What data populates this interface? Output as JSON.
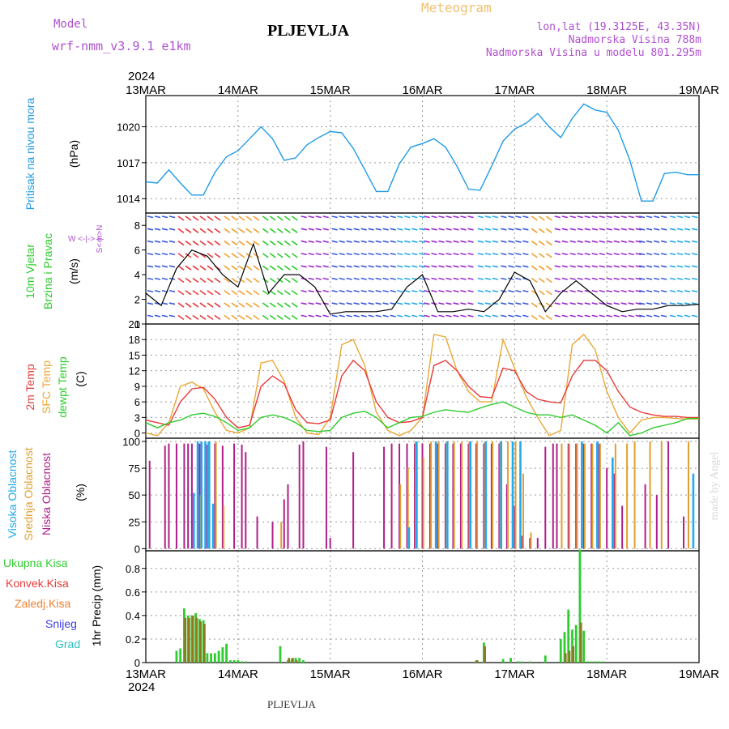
{
  "header": {
    "model_label": "Model",
    "model_name": "wrf-nmm_v3.9.1 e1km",
    "station_title": "PLJEVLJA",
    "product_title": "Meteogram",
    "coords": "lon,lat (19.3125E, 43.35N)",
    "elevation": "Nadmorska Visina 788m",
    "model_elevation": "Nadmorska Visina u modelu 801.295m"
  },
  "footer": {
    "station": "PLJEVLJA",
    "credit": "made by Angel"
  },
  "time_axis": {
    "year": "2024",
    "labels": [
      "13MAR",
      "14MAR",
      "15MAR",
      "16MAR",
      "17MAR",
      "18MAR",
      "19MAR"
    ]
  },
  "panels": {
    "pressure": {
      "label": "Pritisak na nivou mora",
      "unit": "(hPa)",
      "ticks": [
        "1020",
        "1017",
        "1014"
      ]
    },
    "wind": {
      "label_top": "10m Vjetar",
      "label_bottom": "Brzina i Pravac",
      "unit": "(m/s)",
      "ticks": [
        "8",
        "6",
        "4",
        "2",
        "0"
      ],
      "compass": "W <-|-> E",
      "compass_v": "S<-|->N"
    },
    "temp": {
      "label_1": "2m Temp",
      "label_2": "SFC Temp",
      "label_3": "dewpt Temp",
      "unit": "(C)",
      "ticks": [
        "21",
        "18",
        "15",
        "12",
        "9",
        "6",
        "3",
        "0"
      ]
    },
    "cloud": {
      "label_1": "Visoka Oblacnost",
      "label_2": "Srednja Oblacnost",
      "label_3": "Niska Oblacnost",
      "unit": "(%)",
      "ticks": [
        "100",
        "75",
        "50",
        "25",
        "0"
      ]
    },
    "precip": {
      "legend": [
        "Ukupna Kisa",
        "Konvek.Kisa",
        "Zaledj.Kisa",
        "Snijeg",
        "Grad"
      ],
      "unit": "1hr Precip (mm)",
      "ticks": [
        "0.8",
        "0.6",
        "0.4",
        "0.2",
        "0"
      ]
    }
  },
  "colors": {
    "pressure_line": "#1e9be6",
    "temp_2m": "#e83a3a",
    "temp_sfc": "#e8a838",
    "temp_dewpt": "#2ecc2e",
    "cloud_high": "#22aaee",
    "cloud_mid": "#e0a030",
    "cloud_low": "#b0208a",
    "rain_total": "#2ecc2e",
    "rain_conv": "#e83a3a",
    "rain_frz": "#f08030",
    "snow": "#4040e0",
    "hail": "#30c0c0",
    "model_text": "#b050d0",
    "meteogram_text": "#f0c070"
  },
  "chart_data": [
    {
      "type": "line",
      "panel": "pressure",
      "ylabel": "Pritisak na nivou mora (hPa)",
      "xlim": [
        0,
        144
      ],
      "ylim": [
        1012.8,
        1022.6
      ],
      "series": [
        {
          "x": [
            0,
            3,
            6,
            9,
            12,
            15,
            18,
            21,
            24,
            27,
            30,
            33,
            36,
            39,
            42,
            45,
            48,
            51,
            54,
            57,
            60,
            63,
            66,
            69,
            72,
            75,
            78,
            81,
            84,
            87,
            90,
            93,
            96,
            99,
            102,
            105,
            108,
            111,
            114,
            117,
            120,
            123,
            126,
            129,
            132,
            135,
            138,
            141,
            144
          ],
          "values": [
            1015.4,
            1015.3,
            1016.4,
            1015.3,
            1014.3,
            1014.3,
            1016.2,
            1017.5,
            1018.0,
            1019.0,
            1020.0,
            1019.0,
            1017.2,
            1017.4,
            1018.5,
            1019.1,
            1019.6,
            1019.5,
            1018.2,
            1016.4,
            1014.6,
            1014.6,
            1016.9,
            1018.3,
            1018.6,
            1019.0,
            1018.3,
            1016.7,
            1014.8,
            1014.7,
            1016.7,
            1018.8,
            1019.8,
            1020.3,
            1021.1,
            1020.0,
            1019.1,
            1020.7,
            1021.9,
            1021.4,
            1021.2,
            1019.7,
            1017.2,
            1013.8,
            1013.8,
            1016.1,
            1016.2,
            1016.0,
            1016.0
          ]
        }
      ]
    },
    {
      "type": "line",
      "panel": "wind",
      "ylabel": "(m/s)",
      "xlim": [
        0,
        144
      ],
      "ylim": [
        0,
        9
      ],
      "series": [
        {
          "name": "speed",
          "x": [
            0,
            4,
            8,
            12,
            16,
            20,
            24,
            28,
            32,
            36,
            40,
            44,
            48,
            52,
            56,
            60,
            64,
            68,
            72,
            76,
            80,
            84,
            88,
            92,
            96,
            100,
            104,
            108,
            112,
            116,
            120,
            124,
            128,
            132,
            136,
            140,
            144
          ],
          "values": [
            2.5,
            1.5,
            4.5,
            6.0,
            5.5,
            4.0,
            3.0,
            6.5,
            2.5,
            4.0,
            4.0,
            3.0,
            0.8,
            1.0,
            1.0,
            1.0,
            1.2,
            3.0,
            4.0,
            1.0,
            1.0,
            1.2,
            1.0,
            2.0,
            4.2,
            3.5,
            1.0,
            2.5,
            3.5,
            2.5,
            1.5,
            1.0,
            1.2,
            1.2,
            1.5,
            1.5,
            1.6
          ]
        }
      ]
    },
    {
      "type": "line",
      "panel": "temperature",
      "ylabel": "(C)",
      "xlim": [
        0,
        144
      ],
      "ylim": [
        -1,
        21
      ],
      "series": [
        {
          "name": "2m Temp",
          "x": [
            0,
            3,
            6,
            9,
            12,
            15,
            18,
            21,
            24,
            27,
            30,
            33,
            36,
            39,
            42,
            45,
            48,
            51,
            54,
            57,
            60,
            63,
            66,
            69,
            72,
            75,
            78,
            81,
            84,
            87,
            90,
            93,
            96,
            99,
            102,
            105,
            108,
            111,
            114,
            117,
            120,
            123,
            126,
            129,
            132,
            135,
            138,
            141,
            144
          ],
          "values": [
            2.5,
            2.0,
            1.5,
            6.0,
            8.5,
            8.8,
            6.5,
            3.0,
            1.0,
            1.5,
            9.0,
            11.0,
            9.5,
            4.5,
            2.0,
            1.8,
            2.5,
            11.0,
            14.0,
            12.0,
            6.0,
            3.0,
            2.0,
            2.2,
            3.0,
            13.0,
            14.0,
            12.0,
            9.0,
            7.0,
            6.8,
            12.5,
            12.0,
            8.0,
            6.5,
            6.0,
            5.8,
            11.0,
            14.0,
            14.0,
            12.0,
            8.0,
            5.0,
            4.0,
            3.5,
            3.2,
            3.2,
            3.0,
            3.0
          ]
        },
        {
          "name": "SFC Temp",
          "x": [
            0,
            3,
            6,
            9,
            12,
            15,
            18,
            21,
            24,
            27,
            30,
            33,
            36,
            39,
            42,
            45,
            48,
            51,
            54,
            57,
            60,
            63,
            66,
            69,
            72,
            75,
            78,
            81,
            84,
            87,
            90,
            93,
            96,
            99,
            102,
            105,
            108,
            111,
            114,
            117,
            120,
            123,
            126,
            129,
            132,
            135,
            138,
            141,
            144
          ],
          "values": [
            0.0,
            -0.5,
            2.0,
            9.0,
            9.8,
            8.5,
            4.0,
            0.5,
            0.0,
            1.0,
            13.5,
            14.0,
            10.0,
            3.0,
            0.0,
            -0.3,
            3.0,
            17.0,
            18.0,
            13.0,
            4.0,
            0.5,
            -0.5,
            0.5,
            3.0,
            19.0,
            18.5,
            12.0,
            8.0,
            6.0,
            6.0,
            18.0,
            12.5,
            7.0,
            3.0,
            -0.5,
            0.5,
            17.0,
            19.0,
            16.0,
            8.0,
            3.0,
            0.0,
            2.5,
            3.0,
            3.0,
            2.8,
            2.7,
            2.7
          ]
        },
        {
          "name": "dewpt Temp",
          "x": [
            0,
            3,
            6,
            9,
            12,
            15,
            18,
            21,
            24,
            27,
            30,
            33,
            36,
            39,
            42,
            45,
            48,
            51,
            54,
            57,
            60,
            63,
            66,
            69,
            72,
            75,
            78,
            81,
            84,
            87,
            90,
            93,
            96,
            99,
            102,
            105,
            108,
            111,
            114,
            117,
            120,
            123,
            126,
            129,
            132,
            135,
            138,
            141,
            144
          ],
          "values": [
            2.0,
            1.0,
            2.0,
            2.5,
            3.5,
            3.8,
            3.2,
            2.0,
            0.5,
            1.0,
            3.0,
            3.5,
            3.0,
            2.0,
            0.5,
            0.3,
            0.5,
            3.0,
            3.8,
            4.2,
            3.0,
            1.0,
            2.0,
            3.0,
            3.2,
            4.0,
            4.5,
            4.2,
            4.0,
            4.8,
            5.5,
            6.0,
            5.0,
            4.0,
            3.5,
            3.5,
            3.0,
            3.5,
            2.5,
            1.5,
            0.0,
            2.0,
            -0.5,
            0.0,
            1.0,
            1.5,
            2.0,
            2.8,
            2.8
          ]
        }
      ]
    },
    {
      "type": "bar",
      "panel": "cloud",
      "ylabel": "(%)",
      "xlim": [
        0,
        144
      ],
      "ylim": [
        0,
        100
      ],
      "series": [
        {
          "name": "Niska Oblacnost",
          "x": [
            1,
            5,
            6,
            8,
            10,
            11,
            12,
            14,
            16,
            18,
            20,
            23,
            25,
            26,
            29,
            33,
            36,
            37,
            40,
            41,
            47,
            48,
            54,
            62,
            64,
            66,
            68,
            70,
            72,
            74,
            76,
            78,
            80,
            82,
            84,
            86,
            88,
            90,
            92,
            94,
            96,
            98,
            100,
            102,
            104,
            106,
            107,
            110,
            112,
            114,
            116,
            118,
            120,
            122,
            124,
            130,
            133,
            136,
            140
          ],
          "values": [
            82,
            96,
            98,
            98,
            98,
            98,
            98,
            98,
            97,
            98,
            96,
            98,
            97,
            90,
            30,
            25,
            46,
            60,
            97,
            100,
            95,
            10,
            90,
            95,
            98,
            98,
            98,
            98,
            98,
            98,
            98,
            98,
            98,
            98,
            98,
            98,
            98,
            98,
            98,
            60,
            40,
            12,
            10,
            10,
            95,
            98,
            98,
            98,
            98,
            98,
            98,
            98,
            75,
            70,
            40,
            60,
            50,
            100,
            30
          ]
        },
        {
          "name": "Srednja Oblacnost",
          "x": [
            10,
            12,
            14,
            16,
            18,
            20,
            35,
            66,
            68,
            70,
            72,
            74,
            76,
            78,
            80,
            82,
            84,
            86,
            88,
            90,
            92,
            94,
            96,
            98,
            100,
            108,
            110,
            112,
            114,
            116,
            118,
            122,
            125,
            127,
            131,
            134,
            141
          ],
          "values": [
            0,
            0,
            50,
            100,
            100,
            40,
            25,
            60,
            75,
            100,
            85,
            100,
            100,
            100,
            100,
            100,
            100,
            100,
            100,
            100,
            100,
            100,
            100,
            70,
            15,
            98,
            98,
            98,
            98,
            98,
            98,
            98,
            98,
            100,
            100,
            100,
            100
          ]
        },
        {
          "name": "Visoka Oblacnost",
          "x": [
            12,
            13,
            14,
            15,
            16,
            17,
            68,
            70,
            75,
            78,
            84,
            88,
            92,
            95,
            97,
            113,
            117,
            121,
            142
          ],
          "values": [
            52,
            100,
            100,
            100,
            100,
            42,
            20,
            100,
            100,
            100,
            100,
            100,
            100,
            100,
            100,
            100,
            100,
            85,
            70
          ]
        }
      ]
    },
    {
      "type": "bar",
      "panel": "precip",
      "ylabel": "1hr Precip (mm)",
      "xlim": [
        0,
        144
      ],
      "ylim": [
        0,
        0.95
      ],
      "series": [
        {
          "name": "Ukupna Kisa",
          "x": [
            8,
            9,
            10,
            11,
            12,
            13,
            14,
            15,
            16,
            17,
            18,
            19,
            20,
            21,
            22,
            23,
            24,
            25,
            26,
            35,
            37,
            38,
            39,
            40,
            41,
            86,
            88,
            93,
            95,
            97,
            98,
            100,
            104,
            108,
            109,
            110,
            111,
            112,
            113,
            114,
            115,
            116,
            117,
            118,
            119
          ],
          "values": [
            0.1,
            0.12,
            0.46,
            0.4,
            0.4,
            0.42,
            0.37,
            0.36,
            0.08,
            0.08,
            0.08,
            0.1,
            0.13,
            0.16,
            0.02,
            0.02,
            0.02,
            0.01,
            0.01,
            0.14,
            0.02,
            0.03,
            0.04,
            0.04,
            0.02,
            0.02,
            0.17,
            0.03,
            0.04,
            0.01,
            0.01,
            0.01,
            0.06,
            0.2,
            0.26,
            0.45,
            0.28,
            0.32,
            0.96,
            0.27,
            0.01,
            0.01,
            0.01,
            0.01,
            0.01
          ]
        },
        {
          "name": "Konvek.Kisa",
          "x": [
            10,
            11,
            12,
            13,
            14,
            15,
            37,
            38,
            39,
            86,
            88,
            109,
            110,
            111,
            113
          ],
          "values": [
            0.38,
            0.38,
            0.4,
            0.38,
            0.35,
            0.33,
            0.04,
            0.04,
            0.02,
            0.02,
            0.14,
            0.08,
            0.1,
            0.14,
            0.34
          ]
        }
      ]
    }
  ]
}
